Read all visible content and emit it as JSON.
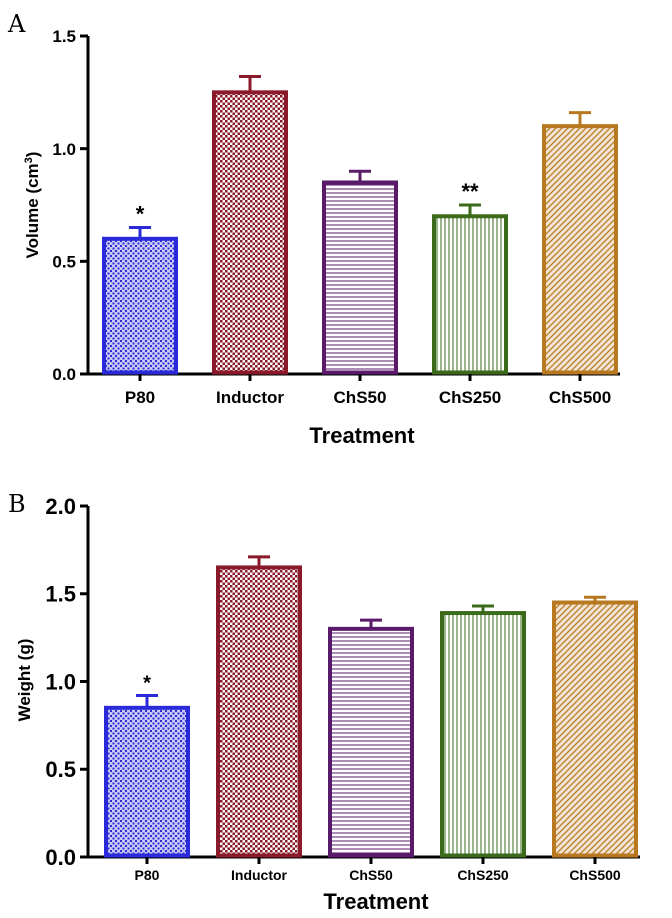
{
  "chart_data": [
    {
      "type": "bar",
      "panel_label": "A",
      "title": "",
      "xlabel": "Treatment",
      "ylabel": "Volume (cm",
      "ylabel_superscript": "3",
      "ylabel_suffix": ")",
      "ylim": [
        0,
        1.5
      ],
      "yticks": [
        "0.0",
        "0.5",
        "1.0",
        "1.5"
      ],
      "categories": [
        "P80",
        "Inductor",
        "ChS50",
        "ChS250",
        "ChS500"
      ],
      "values": [
        0.6,
        1.25,
        0.85,
        0.7,
        1.1
      ],
      "errors": [
        0.05,
        0.07,
        0.05,
        0.05,
        0.06
      ],
      "annotations": [
        "*",
        "",
        "",
        "**",
        ""
      ],
      "colors": [
        "#2a2ad8",
        "#8a1a2a",
        "#5a1a6a",
        "#3a6a1a",
        "#b87820"
      ],
      "patterns": [
        "dots",
        "check",
        "hlines",
        "vlines",
        "diag"
      ]
    },
    {
      "type": "bar",
      "panel_label": "B",
      "title": "",
      "xlabel": "Treatment",
      "ylabel": "Weight (g)",
      "ylabel_superscript": "",
      "ylabel_suffix": "",
      "ylim": [
        0,
        2.0
      ],
      "yticks": [
        "0.0",
        "0.5",
        "1.0",
        "1.5",
        "2.0"
      ],
      "categories": [
        "P80",
        "Inductor",
        "ChS50",
        "ChS250",
        "ChS500"
      ],
      "values": [
        0.85,
        1.65,
        1.3,
        1.39,
        1.45
      ],
      "errors": [
        0.07,
        0.06,
        0.05,
        0.04,
        0.03
      ],
      "annotations": [
        "*",
        "",
        "",
        "",
        ""
      ],
      "colors": [
        "#2a2ad8",
        "#8a1a2a",
        "#5a1a6a",
        "#3a6a1a",
        "#b87820"
      ],
      "patterns": [
        "dots",
        "check",
        "hlines",
        "vlines",
        "diag"
      ]
    }
  ]
}
